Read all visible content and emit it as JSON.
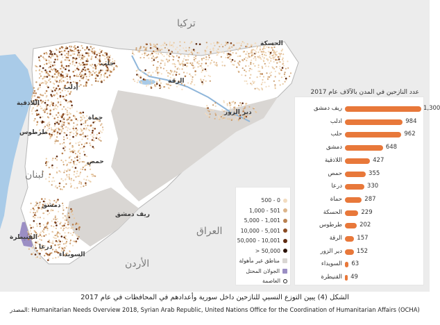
{
  "countries": {
    "turkey": "تركيا",
    "lebanon": "لبنان",
    "iraq": "العراق",
    "jordan": "الأردن"
  },
  "cities": {
    "hasakah": "الحسكة",
    "aleppo": "حلب",
    "idlib": "إدلب",
    "raqqa": "الرقة",
    "latakia": "اللاذقية",
    "hama": "حماة",
    "tartus": "طرطوس",
    "deir_ezzor": "دير الزور",
    "homs": "حمص",
    "rural_damascus": "ريف دمشق",
    "damascus": "دمشق",
    "quneitra": "القنيطرة",
    "daraa": "درعا",
    "sweida": "السويداء"
  },
  "legend": {
    "items": [
      {
        "label": "0 - 500",
        "color": "#f2dcc0"
      },
      {
        "label": "501 - 1,000",
        "color": "#dcb48a"
      },
      {
        "label": "1,001 - 5,000",
        "color": "#b9804f"
      },
      {
        "label": "5,001 - 10,000",
        "color": "#8a4a22"
      },
      {
        "label": "10,001 - 50,000",
        "color": "#5e2a10"
      },
      {
        "label": "50,000 <",
        "color": "#2b1206"
      },
      {
        "label": "مناطق غير مأهولة",
        "color": "#d9d6d3"
      },
      {
        "label": "الجولان المحتل",
        "color": "#9b8ec4"
      },
      {
        "label": "العاصمة",
        "color": "#ffffff"
      }
    ]
  },
  "chart_data": {
    "type": "bar",
    "title": "عدد النازحين في المدن بالآلاف عام 2017",
    "categories": [
      "ريف دمشق",
      "ادلب",
      "حلب",
      "دمشق",
      "اللاذقية",
      "حمص",
      "درعا",
      "حماة",
      "الحسكة",
      "طرطوس",
      "الرقة",
      "دير الزور",
      "السويداء",
      "القنيطرة"
    ],
    "values": [
      1300,
      984,
      962,
      648,
      427,
      355,
      330,
      287,
      229,
      202,
      157,
      152,
      63,
      49
    ],
    "value_labels": [
      "1,300",
      "984",
      "962",
      "648",
      "427",
      "355",
      "330",
      "287",
      "229",
      "202",
      "157",
      "152",
      "63",
      "49"
    ],
    "color": "#e8783a",
    "xlim": [
      0,
      1300
    ]
  },
  "caption": "الشكل (4) يبين التوزع النسبي للنازحين داخل سورية وأعدادهم في المحافظات في عام 2017",
  "source": "المصدر: Humanitarian Needs Overview 2018, Syrian Arab Republic, United Nations Office for the Coordination of Humanitarian Affairs (OCHA)",
  "colors": {
    "background_land": "#eeeeee",
    "syria_land": "#ffffff",
    "uninhabited": "#d9d6d3",
    "sea": "#a9cbe8",
    "bar": "#e8783a"
  }
}
